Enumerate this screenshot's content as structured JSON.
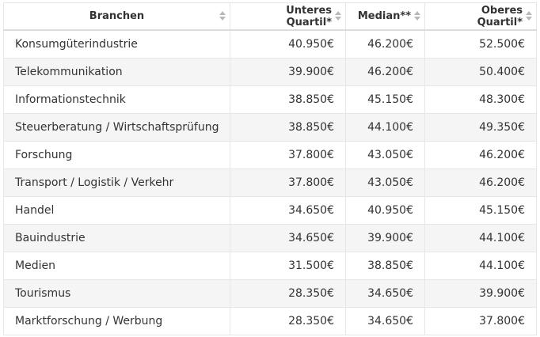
{
  "table": {
    "headers": [
      "Branchen",
      "Unteres Quartil*",
      "Median**",
      "Oberes Quartil*"
    ],
    "rows": [
      [
        "Konsumgüterindustrie",
        "40.950€",
        "46.200€",
        "52.500€"
      ],
      [
        "Telekommunikation",
        "39.900€",
        "46.200€",
        "50.400€"
      ],
      [
        "Informationstechnik",
        "38.850€",
        "45.150€",
        "48.300€"
      ],
      [
        "Steuerberatung / Wirtschaftsprüfung",
        "38.850€",
        "44.100€",
        "49.350€"
      ],
      [
        "Forschung",
        "37.800€",
        "43.050€",
        "46.200€"
      ],
      [
        "Transport / Logistik / Verkehr",
        "37.800€",
        "43.050€",
        "46.200€"
      ],
      [
        "Handel",
        "34.650€",
        "40.950€",
        "45.150€"
      ],
      [
        "Bauindustrie",
        "34.650€",
        "39.900€",
        "44.100€"
      ],
      [
        "Medien",
        "31.500€",
        "38.850€",
        "44.100€"
      ],
      [
        "Tourismus",
        "28.350€",
        "34.650€",
        "39.900€"
      ],
      [
        "Marktforschung / Werbung",
        "28.350€",
        "34.650€",
        "37.800€"
      ]
    ]
  }
}
